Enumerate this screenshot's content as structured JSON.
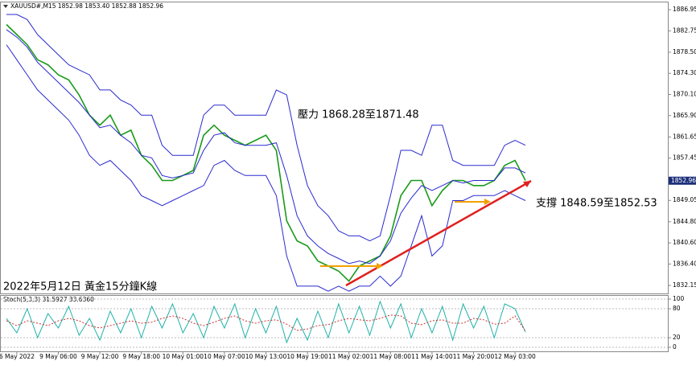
{
  "chart_data": [
    {
      "type": "line",
      "title": "XAUUSD#,M15 1852.98 1853.40 1852.88 1852.96",
      "categories": [
        null,
        "6 May 2022",
        null,
        null,
        null,
        "9 May 06:00",
        null,
        null,
        null,
        "9 May 12:00",
        null,
        null,
        null,
        "9 May 18:00",
        null,
        null,
        null,
        "10 May 01:00",
        null,
        null,
        null,
        "10 May 07:00",
        null,
        null,
        null,
        "10 May 13:00",
        null,
        null,
        null,
        "10 May 19:00",
        null,
        null,
        null,
        "11 May 02:00",
        null,
        null,
        null,
        "11 May 08:00",
        null,
        null,
        null,
        "11 May 14:00",
        null,
        null,
        null,
        "11 May 20:00",
        null,
        null,
        null,
        "12 May 03:00",
        null
      ],
      "series": [
        {
          "color": "#1a9a1a",
          "values": [
            1884,
            1882,
            1880,
            1877,
            1876,
            1874,
            1873,
            1870,
            1866,
            1864,
            1866,
            1862,
            1863,
            1858,
            1856,
            1853,
            1853,
            1854,
            1855,
            1862,
            1864,
            1862,
            1861,
            1860,
            1861,
            1862,
            1859,
            1845,
            1841,
            1840,
            1837,
            1836,
            1835,
            1833,
            1836,
            1837,
            1838,
            1842,
            1850,
            1853,
            1853,
            1848,
            1851,
            1853,
            1853,
            1852,
            1852,
            1853,
            1856,
            1857,
            1853
          ]
        },
        {
          "color": "#2a2ad0",
          "values": [
            1886,
            1886,
            1885,
            1882,
            1880,
            1878,
            1876,
            1875,
            1874,
            1871,
            1871,
            1869,
            1868,
            1866,
            1866,
            1860,
            1858,
            1858,
            1858,
            1866,
            1868,
            1868,
            1866,
            1866,
            1866,
            1866,
            1871,
            1870,
            1860,
            1852,
            1848,
            1846,
            1843,
            1842,
            1842,
            1841,
            1842,
            1850,
            1859,
            1859,
            1858,
            1864,
            1864,
            1857,
            1856,
            1856,
            1856,
            1856,
            1860,
            1861,
            1860
          ]
        },
        {
          "color": "#2a2ad0",
          "values": [
            1883,
            1881.5,
            1879.5,
            1876.5,
            1874.5,
            1872.5,
            1870.5,
            1868.5,
            1866,
            1863.5,
            1864,
            1862,
            1860.5,
            1858,
            1857.5,
            1854,
            1853.5,
            1854,
            1854.5,
            1859,
            1862,
            1862.5,
            1860.5,
            1860,
            1860,
            1860,
            1860.5,
            1854,
            1846,
            1842,
            1840,
            1838.5,
            1837.5,
            1836.5,
            1837,
            1836.5,
            1838,
            1841,
            1846.5,
            1849.5,
            1852,
            1851,
            1852,
            1853,
            1852.5,
            1853,
            1853,
            1853,
            1855.5,
            1855.5,
            1854.5
          ]
        },
        {
          "color": "#2a2ad0",
          "values": [
            1880,
            1877,
            1874,
            1871,
            1869,
            1867,
            1865,
            1862,
            1858,
            1856,
            1857,
            1855,
            1853,
            1850,
            1849,
            1848,
            1849,
            1850,
            1851,
            1852,
            1856,
            1857,
            1855,
            1854,
            1854,
            1854,
            1850,
            1838,
            1832,
            1832,
            1832,
            1831,
            1832,
            1831,
            1832,
            1832,
            1834,
            1832,
            1834,
            1840,
            1846,
            1838,
            1840,
            1849,
            1849,
            1850,
            1850,
            1850,
            1851,
            1850,
            1849
          ]
        }
      ],
      "ylim": [
        1830.55,
        1888.4
      ],
      "yticks": [
        1886.95,
        1882.75,
        {
          "value": 1878.5,
          "label": "1878.50"
        },
        {
          "value": 1874.3,
          "label": "1874.30"
        },
        {
          "value": 1870.1,
          "label": "1870.10"
        },
        {
          "value": 1865.9,
          "label": "1865.90"
        },
        1861.65,
        1857.45,
        1849.05,
        {
          "value": 1844.8,
          "label": "1844.80"
        },
        {
          "value": 1840.6,
          "label": "1840.60"
        },
        {
          "value": 1836.4,
          "label": "1836.40"
        },
        1832.15
      ],
      "current_price": 1852.96,
      "annotations": [
        "壓力 1868.28至1871.48",
        "支撐 1848.59至1852.53",
        "2022年5月12日 黃金15分鐘K線"
      ]
    },
    {
      "type": "line",
      "title": "Stoch(5,3,3) 31.5927 33.6360",
      "series": [
        {
          "color": "#20b2aa",
          "values": [
            60,
            30,
            80,
            20,
            70,
            40,
            85,
            25,
            60,
            15,
            75,
            30,
            80,
            20,
            85,
            40,
            90,
            30,
            70,
            20,
            85,
            40,
            90,
            20,
            80,
            30,
            85,
            10,
            60,
            15,
            75,
            20,
            90,
            30,
            85,
            25,
            95,
            40,
            90,
            20,
            80,
            30,
            85,
            15,
            90,
            40,
            85,
            20,
            90,
            80,
            31.5927
          ]
        },
        {
          "color": "#d03030",
          "values": [
            55,
            45,
            55,
            50,
            45,
            55,
            60,
            55,
            45,
            40,
            45,
            50,
            55,
            50,
            52,
            60,
            65,
            60,
            50,
            45,
            52,
            60,
            65,
            55,
            50,
            55,
            57,
            48,
            35,
            38,
            45,
            47,
            55,
            60,
            57,
            55,
            60,
            67,
            65,
            50,
            47,
            55,
            57,
            50,
            50,
            60,
            57,
            48,
            50,
            65,
            33.636
          ]
        }
      ],
      "ylim": [
        -8.3,
        106.7
      ],
      "yticks": [
        100,
        80,
        20,
        0
      ]
    }
  ]
}
